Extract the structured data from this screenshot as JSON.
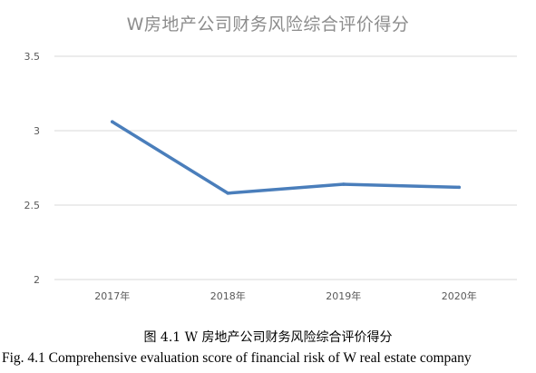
{
  "chart_data": {
    "type": "line",
    "title": "W房地产公司财务风险综合评价得分",
    "categories": [
      "2017年",
      "2018年",
      "2019年",
      "2020年"
    ],
    "series": [
      {
        "values": [
          3.06,
          2.58,
          2.64,
          2.62
        ],
        "color": "#4a7ebb"
      }
    ],
    "yticks": [
      "3.5",
      "3",
      "2.5",
      "2"
    ],
    "ylim": [
      2,
      3.5
    ],
    "grid": true,
    "legend": "none"
  },
  "caption": {
    "cn": "图 4.1 W 房地产公司财务风险综合评价得分",
    "en": "Fig. 4.1 Comprehensive evaluation score of financial risk of W real estate company"
  }
}
